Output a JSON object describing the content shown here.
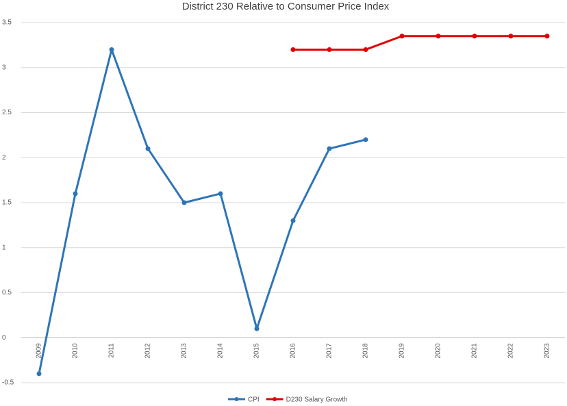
{
  "chart_data": {
    "type": "line",
    "title": "District 230 Relative to Consumer Price Index",
    "categories": [
      "2009",
      "2010",
      "2011",
      "2012",
      "2013",
      "2014",
      "2015",
      "2016",
      "2017",
      "2018",
      "2019",
      "2020",
      "2021",
      "2022",
      "2023"
    ],
    "series": [
      {
        "name": "CPI",
        "color": "#2e75b6",
        "values": [
          -0.4,
          1.6,
          3.2,
          2.1,
          1.5,
          1.6,
          0.1,
          1.3,
          2.1,
          2.2,
          null,
          null,
          null,
          null,
          null
        ]
      },
      {
        "name": "D230 Salary Growth",
        "color": "#e00000",
        "values": [
          null,
          null,
          null,
          null,
          null,
          null,
          null,
          3.2,
          3.2,
          3.2,
          3.35,
          3.35,
          3.35,
          3.35,
          3.35
        ]
      }
    ],
    "ylim": [
      -0.5,
      3.5
    ],
    "yticks": [
      -0.5,
      0,
      0.5,
      1,
      1.5,
      2,
      2.5,
      3,
      3.5
    ],
    "grid": true,
    "legend": "bottom"
  }
}
